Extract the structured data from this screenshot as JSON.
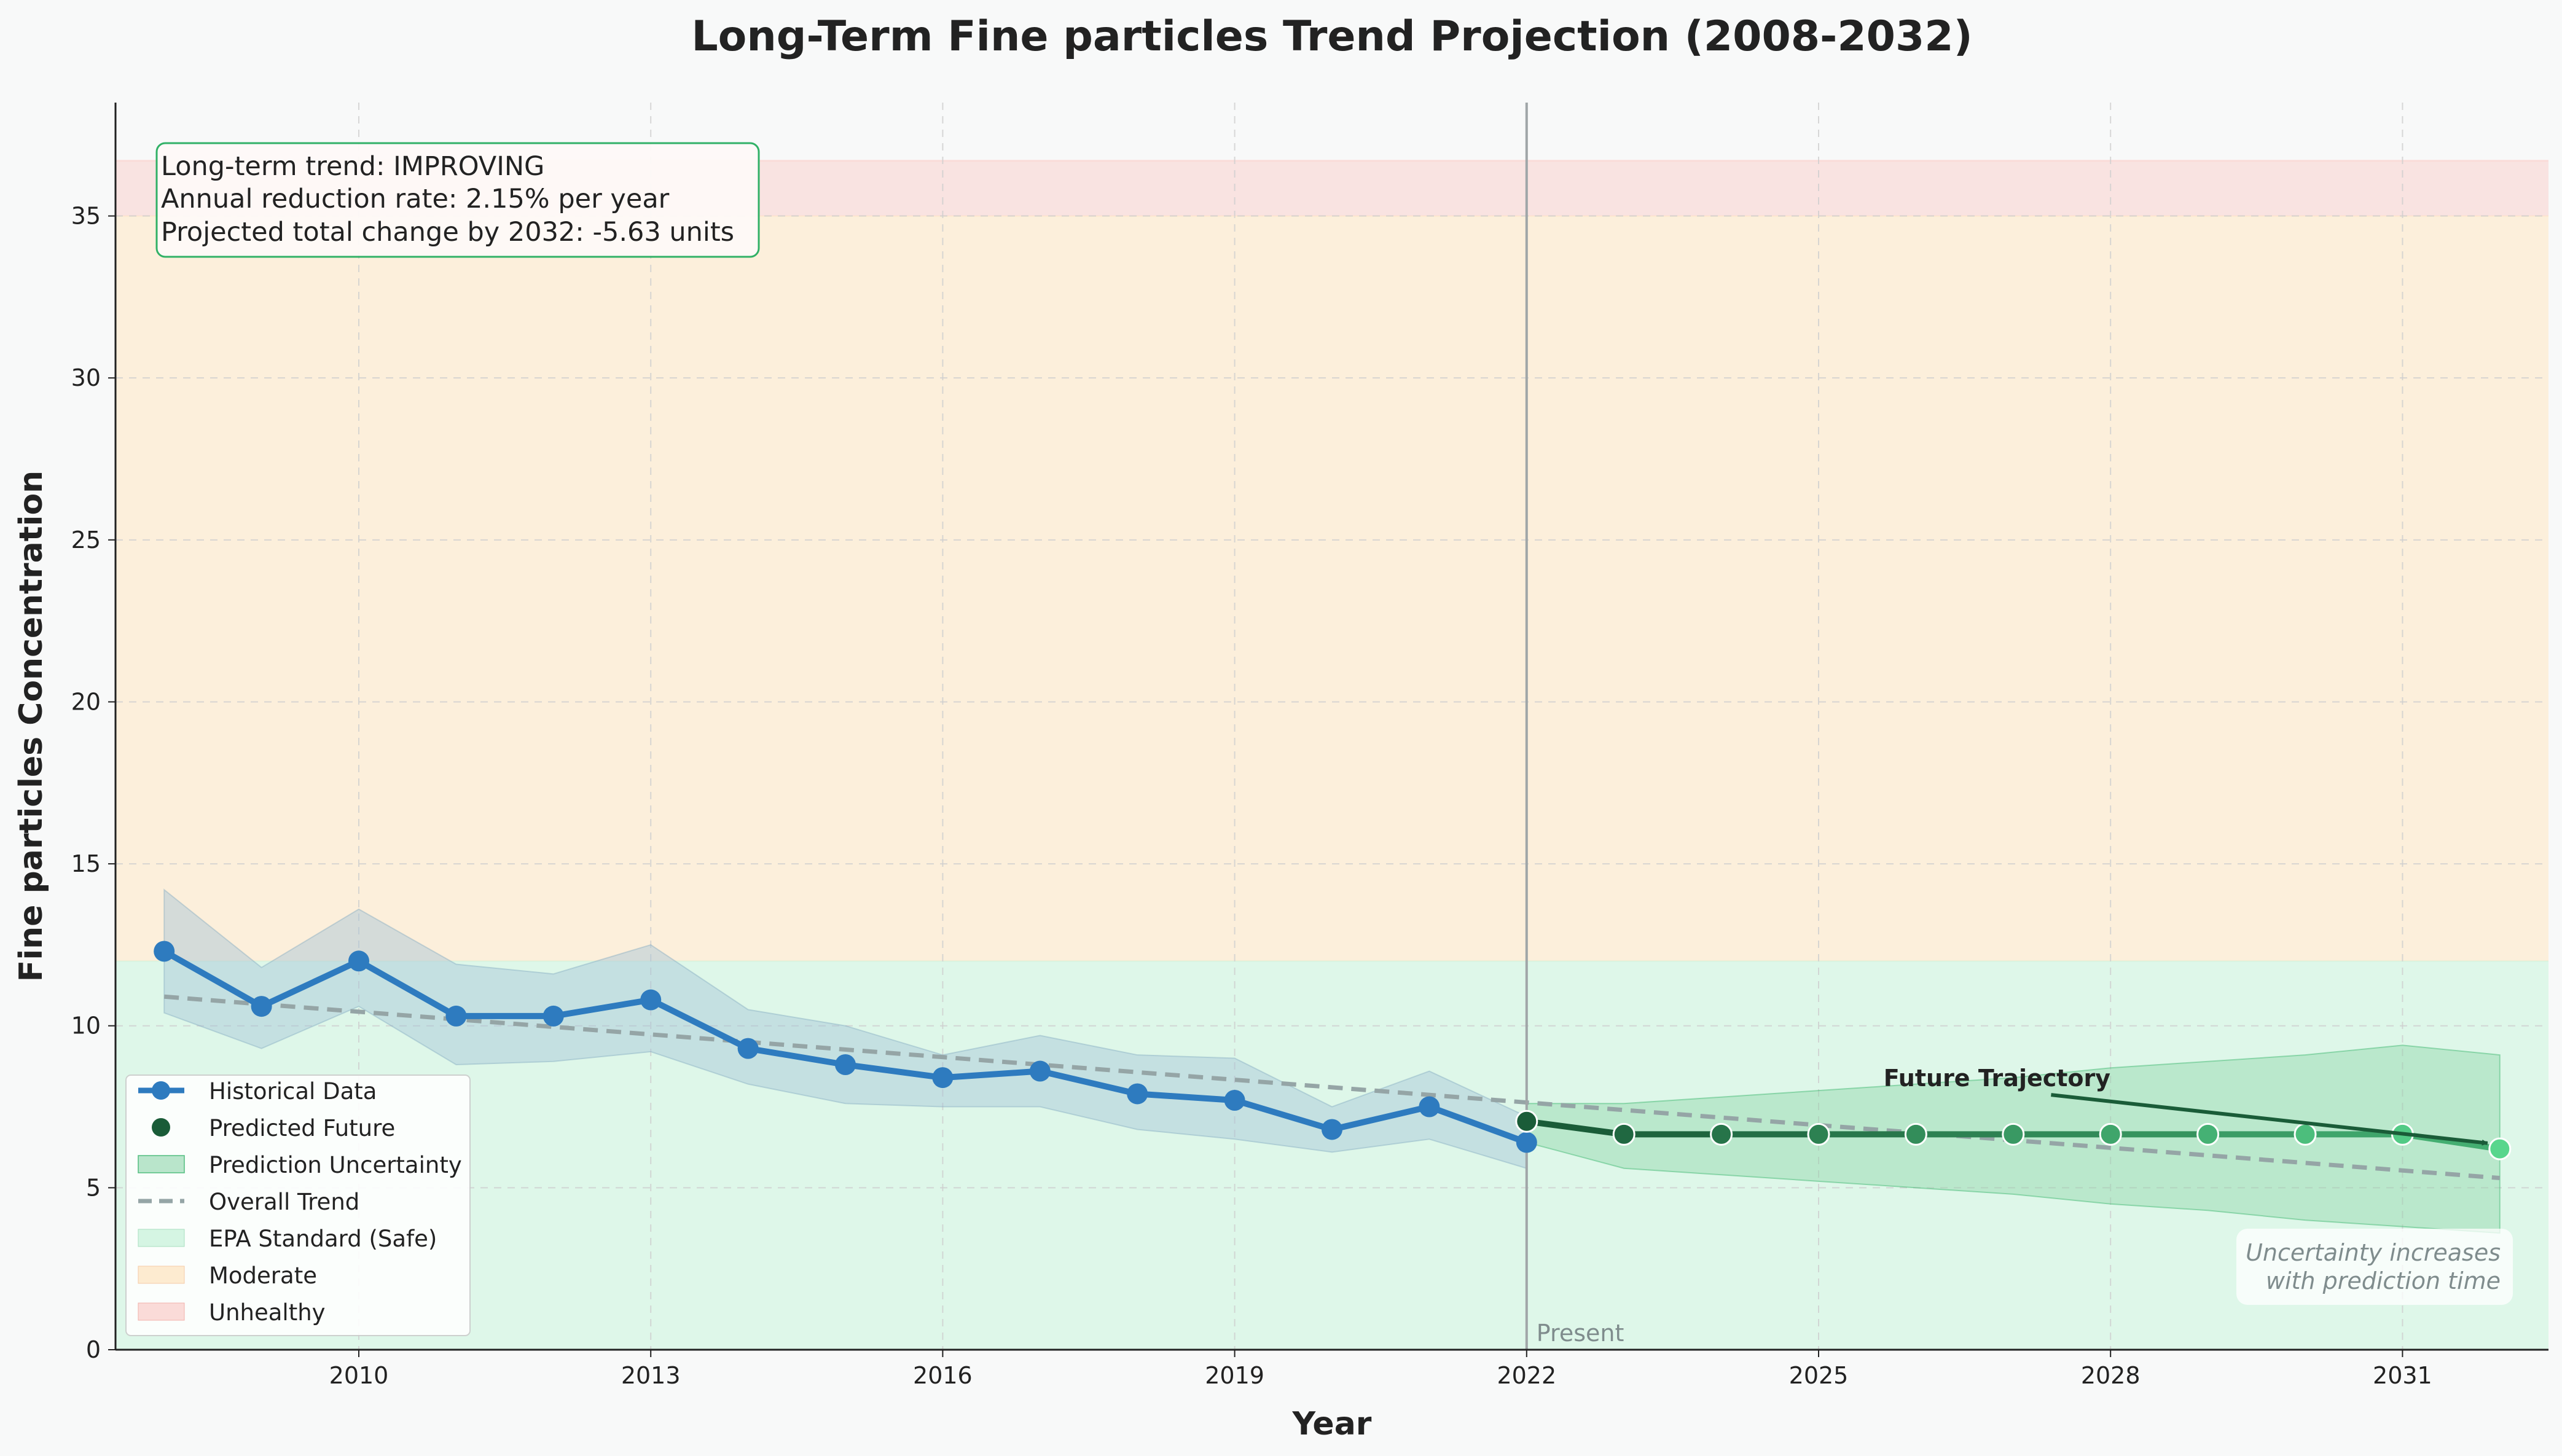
{
  "chart_data": {
    "type": "line",
    "title": "Long-Term Fine particles Trend Projection (2008-2032)",
    "xlabel": "Year",
    "ylabel": "Fine particles Concentration",
    "xlim": [
      2007.5,
      2032.5
    ],
    "ylim": [
      0,
      38.5
    ],
    "x_ticks": [
      2010,
      2013,
      2016,
      2019,
      2022,
      2025,
      2028,
      2031
    ],
    "y_ticks": [
      0,
      5,
      10,
      15,
      20,
      25,
      30,
      35
    ],
    "grid": true,
    "legend_position": "lower-left",
    "zones": [
      {
        "name": "EPA Standard (Safe)",
        "y0": 0,
        "y1": 12,
        "color": "#d5f5e3"
      },
      {
        "name": "Moderate",
        "y0": 12,
        "y1": 35,
        "color": "#fdebd0"
      },
      {
        "name": "Unhealthy",
        "y0": 35,
        "y1": 36.7,
        "color": "#fadbd8"
      }
    ],
    "series": [
      {
        "name": "Historical Data",
        "color": "#2e7bbf",
        "x": [
          2008,
          2009,
          2010,
          2011,
          2012,
          2013,
          2014,
          2015,
          2016,
          2017,
          2018,
          2019,
          2020,
          2021,
          2022
        ],
        "values": [
          12.3,
          10.6,
          12.0,
          10.3,
          10.3,
          10.8,
          9.3,
          8.8,
          8.4,
          8.6,
          7.9,
          7.7,
          6.8,
          7.5,
          6.4
        ],
        "lower": [
          10.4,
          9.3,
          10.6,
          8.8,
          8.9,
          9.2,
          8.2,
          7.6,
          7.5,
          7.5,
          6.8,
          6.5,
          6.1,
          6.5,
          5.6
        ],
        "upper": [
          14.2,
          11.8,
          13.6,
          11.9,
          11.6,
          12.5,
          10.5,
          10.0,
          9.1,
          9.7,
          9.1,
          9.0,
          7.5,
          8.6,
          7.2
        ]
      },
      {
        "name": "Predicted Future",
        "color": "#27ae60",
        "x": [
          2022,
          2023,
          2024,
          2025,
          2026,
          2027,
          2028,
          2029,
          2030,
          2031,
          2032
        ],
        "values": [
          7.05,
          6.65,
          6.65,
          6.65,
          6.65,
          6.65,
          6.65,
          6.65,
          6.65,
          6.65,
          6.2
        ],
        "lower": [
          6.4,
          5.6,
          5.4,
          5.2,
          5.0,
          4.8,
          4.5,
          4.3,
          4.0,
          3.8,
          3.6
        ],
        "upper": [
          7.6,
          7.6,
          7.8,
          8.0,
          8.2,
          8.4,
          8.7,
          8.9,
          9.1,
          9.4,
          9.1
        ]
      },
      {
        "name": "Overall Trend",
        "color": "#95a5a6",
        "x": [
          2008,
          2032
        ],
        "values": [
          10.9,
          5.3
        ]
      }
    ],
    "present_year": 2022,
    "present_label": "Present",
    "annotation_arrow": {
      "label": "Future Trajectory",
      "from": [
        2026,
        8.4
      ],
      "to": [
        2032,
        6.3
      ]
    },
    "summary_box": [
      "Long-term trend: IMPROVING",
      "Annual reduction rate: 2.15% per year",
      "Projected total change by 2032: -5.63 units"
    ],
    "uncertainty_note": [
      "Uncertainty increases",
      "with prediction time"
    ],
    "legend": [
      "Historical Data",
      "Predicted Future",
      "Prediction Uncertainty",
      "Overall Trend",
      "EPA Standard (Safe)",
      "Moderate",
      "Unhealthy"
    ]
  }
}
